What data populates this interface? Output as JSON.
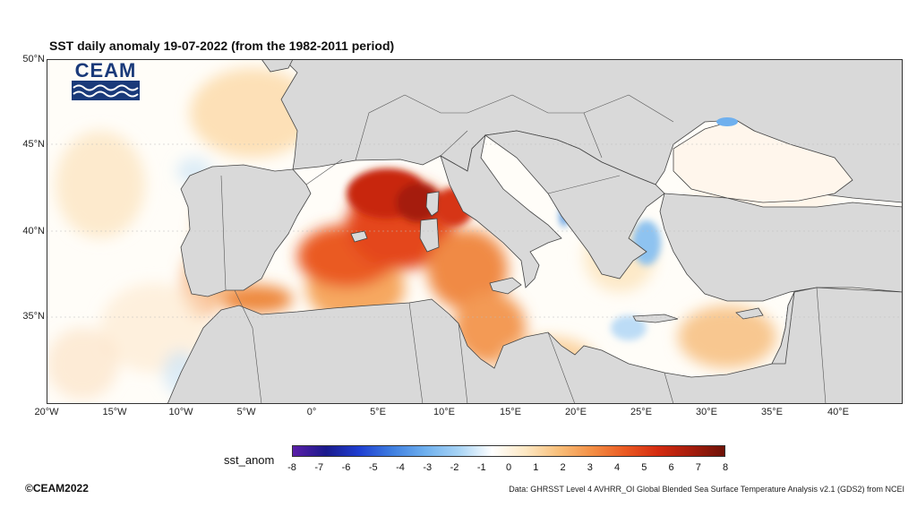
{
  "title": "SST daily anomaly 19-07-2022 (from the 1982-2011 period)",
  "logo": {
    "text": "CEAM",
    "icon": "waves-icon",
    "color": "#1a3a7a"
  },
  "map": {
    "projection": "lat-lon",
    "lon_range": [
      -20,
      45
    ],
    "lat_range": [
      30,
      50
    ],
    "land_color": "#d9d9d9",
    "lat_labels": [
      "50°N",
      "45°N",
      "40°N",
      "35°N"
    ],
    "lon_labels": [
      "20°W",
      "15°W",
      "10°W",
      "5°W",
      "0°",
      "5°E",
      "10°E",
      "15°E",
      "20°E",
      "25°E",
      "30°E",
      "35°E",
      "40°E"
    ]
  },
  "chart_data": {
    "type": "heatmap",
    "variable": "sst_anom",
    "colorbar": {
      "min": -8,
      "max": 8,
      "ticks": [
        "-8",
        "-7",
        "-6",
        "-5",
        "-4",
        "-3",
        "-2",
        "-1",
        "0",
        "1",
        "2",
        "3",
        "4",
        "5",
        "6",
        "7",
        "8"
      ],
      "colors": [
        "#5b1fa8",
        "#1a1a8c",
        "#1f3fd1",
        "#3f7fe0",
        "#6fb0ee",
        "#a8d4f5",
        "#ffffff",
        "#fde8c4",
        "#f8bf7a",
        "#f38f45",
        "#ea5a22",
        "#d42b10",
        "#a51c0c",
        "#6e1208"
      ]
    }
  },
  "colorbar_label": "sst_anom",
  "footer": {
    "copyright": "©CEAM2022",
    "source": "Data: GHRSST Level 4 AVHRR_OI Global Blended Sea Surface Temperature Analysis v2.1 (GDS2) from NCEI"
  }
}
